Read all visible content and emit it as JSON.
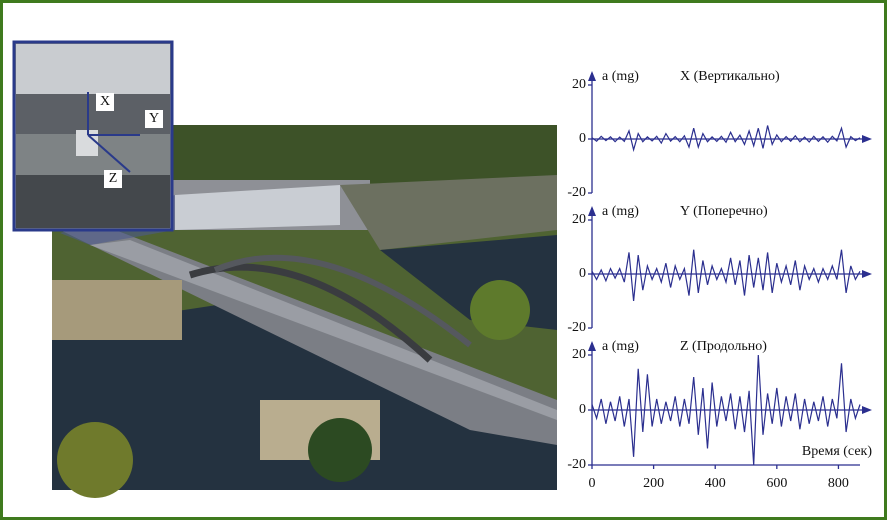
{
  "photo_labels": [
    "X",
    "Y",
    "Z"
  ],
  "chart_data": [
    {
      "type": "line",
      "ylabel": "a (mg)",
      "title": "X (Вертикально)",
      "xlim": [
        0,
        870
      ],
      "ylim": [
        -20,
        20
      ],
      "yticks": [
        -20,
        0,
        20
      ],
      "x": [
        0,
        15,
        30,
        45,
        60,
        75,
        90,
        105,
        120,
        135,
        150,
        165,
        180,
        195,
        210,
        225,
        240,
        255,
        270,
        285,
        300,
        315,
        330,
        345,
        360,
        375,
        390,
        405,
        420,
        435,
        450,
        465,
        480,
        495,
        510,
        525,
        540,
        555,
        570,
        585,
        600,
        615,
        630,
        645,
        660,
        675,
        690,
        705,
        720,
        735,
        750,
        765,
        780,
        795,
        810,
        825,
        840,
        855,
        870
      ],
      "series": [
        {
          "color": "#2b2f8f",
          "values": [
            0.5,
            -0.8,
            1,
            -0.6,
            0.8,
            -1,
            0.7,
            -0.9,
            3,
            -4,
            2,
            -1,
            0.8,
            -0.7,
            1,
            -1.5,
            2,
            -0.8,
            0.9,
            -1,
            1.2,
            -3,
            4,
            -3,
            2,
            -1,
            0.8,
            -0.9,
            1,
            -1.2,
            2.5,
            -1,
            1.4,
            -2,
            3,
            -2.5,
            4,
            -3.5,
            5,
            -2,
            1.5,
            -1,
            0.9,
            -0.8,
            1.2,
            -1,
            0.7,
            -1.1,
            1,
            -0.9,
            0.8,
            -1.2,
            1,
            -0.7,
            4,
            -3,
            0.9,
            -0.6,
            0.5
          ]
        }
      ]
    },
    {
      "type": "line",
      "ylabel": "a (mg)",
      "title": "Y (Поперечно)",
      "xlim": [
        0,
        870
      ],
      "ylim": [
        -20,
        20
      ],
      "yticks": [
        -20,
        0,
        20
      ],
      "x": [
        0,
        15,
        30,
        45,
        60,
        75,
        90,
        105,
        120,
        135,
        150,
        165,
        180,
        195,
        210,
        225,
        240,
        255,
        270,
        285,
        300,
        315,
        330,
        345,
        360,
        375,
        390,
        405,
        420,
        435,
        450,
        465,
        480,
        495,
        510,
        525,
        540,
        555,
        570,
        585,
        600,
        615,
        630,
        645,
        660,
        675,
        690,
        705,
        720,
        735,
        750,
        765,
        780,
        795,
        810,
        825,
        840,
        855,
        870
      ],
      "series": [
        {
          "color": "#2b2f8f",
          "values": [
            1,
            -2,
            1.5,
            -2.5,
            2,
            -1.5,
            2,
            -3,
            8,
            -10,
            7,
            -6,
            3,
            -2,
            2,
            -3,
            4,
            -5,
            3,
            -2,
            2,
            -8,
            9,
            -7,
            5,
            -4,
            3,
            -2,
            2,
            -3,
            6,
            -4,
            5,
            -8,
            7,
            -5,
            6,
            -6,
            8,
            -7,
            4,
            -3,
            3,
            -4,
            5,
            -6,
            3,
            -2,
            2,
            -3,
            2,
            -2,
            3,
            -2,
            9,
            -7,
            3,
            -2,
            1
          ]
        }
      ]
    },
    {
      "type": "line",
      "ylabel": "a (mg)",
      "title": "Z (Продольно)",
      "xlabel": "Время (сек)",
      "xlim": [
        0,
        870
      ],
      "ylim": [
        -20,
        20
      ],
      "yticks": [
        -20,
        0,
        20
      ],
      "xticks": [
        0,
        200,
        400,
        600,
        800
      ],
      "x": [
        0,
        15,
        30,
        45,
        60,
        75,
        90,
        105,
        120,
        135,
        150,
        165,
        180,
        195,
        210,
        225,
        240,
        255,
        270,
        285,
        300,
        315,
        330,
        345,
        360,
        375,
        390,
        405,
        420,
        435,
        450,
        465,
        480,
        495,
        510,
        525,
        540,
        555,
        570,
        585,
        600,
        615,
        630,
        645,
        660,
        675,
        690,
        705,
        720,
        735,
        750,
        765,
        780,
        795,
        810,
        825,
        840,
        855,
        870
      ],
      "series": [
        {
          "color": "#2b2f8f",
          "values": [
            2,
            -3,
            4,
            -5,
            3,
            -4,
            5,
            -6,
            4,
            -17,
            15,
            -8,
            13,
            -6,
            4,
            -5,
            3,
            -4,
            5,
            -6,
            4,
            -5,
            12,
            -9,
            8,
            -14,
            10,
            -6,
            5,
            -4,
            6,
            -7,
            5,
            -8,
            7,
            -20,
            20,
            -9,
            6,
            -5,
            8,
            -6,
            5,
            -4,
            6,
            -7,
            4,
            -5,
            3,
            -4,
            5,
            -6,
            4,
            -3,
            17,
            -8,
            4,
            -3,
            2
          ]
        }
      ]
    }
  ]
}
